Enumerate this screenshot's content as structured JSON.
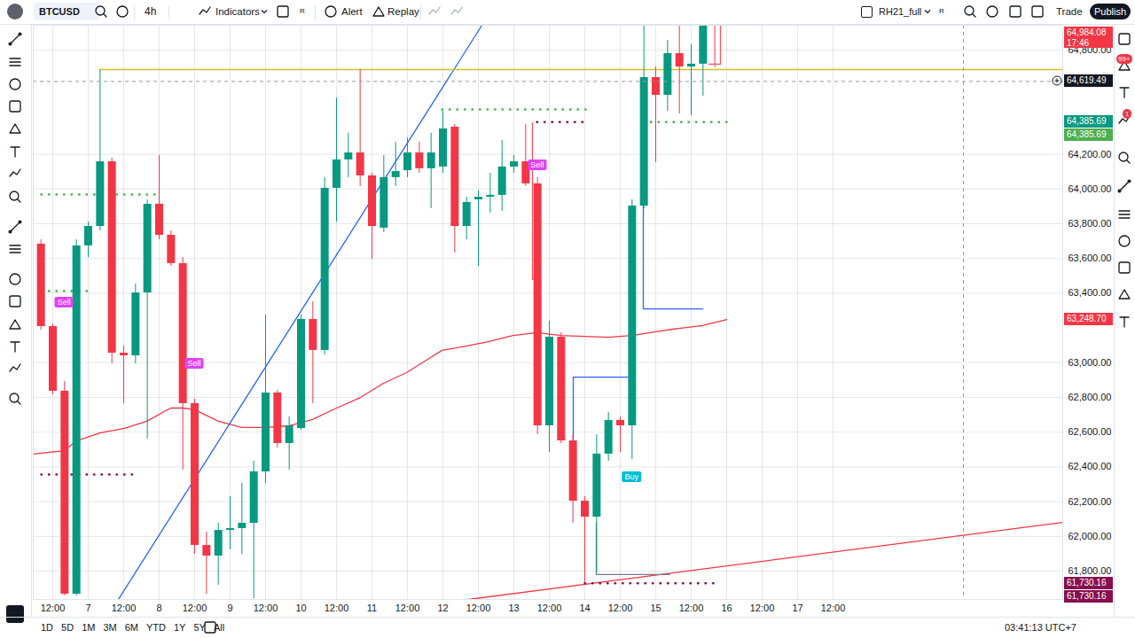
{
  "chart_data": {
    "type": "candlestick",
    "x": [
      6.3333,
      6.5,
      6.6667,
      6.8333,
      7,
      7.1667,
      7.3333,
      7.5,
      7.6667,
      7.8333,
      8,
      8.1667,
      8.3333,
      8.5,
      8.6667,
      8.8333,
      9,
      9.1667,
      9.3333,
      9.5,
      9.6667,
      9.8333,
      10,
      10.1667,
      10.3333,
      10.5,
      10.6667,
      10.8333,
      11,
      11.1667,
      11.3333,
      11.5,
      11.6667,
      11.8333,
      12,
      12.1667,
      12.3333,
      12.5,
      12.6667,
      12.8333,
      13,
      13.1667,
      13.3333,
      13.5,
      13.6667,
      13.8333,
      14,
      14.1667,
      14.3333,
      14.5,
      14.6667,
      14.8333,
      15,
      15.1667,
      15.3333,
      15.5,
      15.6667,
      15.8333
    ],
    "open": [
      63683,
      63208,
      62836,
      61668,
      63673,
      63785,
      64157,
      63055,
      63040,
      63402,
      63913,
      63734,
      63571,
      62765,
      61948,
      61887,
      62035,
      62045,
      62076,
      62372,
      62826,
      62535,
      62622,
      63249,
      63071,
      64004,
      64168,
      64208,
      64076,
      63775,
      64066,
      64106,
      64208,
      64117,
      64127,
      64356,
      63785,
      63938,
      63953,
      63964,
      64127,
      64157,
      64030,
      62637,
      63147,
      62550,
      62203,
      62111,
      62474,
      62668,
      62637,
      63902,
      64642,
      64540,
      64780,
      64703,
      64719,
      64990
    ],
    "high": [
      63708,
      63224,
      62892,
      63708,
      63810,
      64688,
      64178,
      63096,
      63453,
      63938,
      64193,
      63759,
      63606,
      62790,
      62025,
      62076,
      62229,
      62305,
      62433,
      63275,
      62841,
      62688,
      63275,
      63351,
      64066,
      64525,
      64321,
      64688,
      64091,
      64193,
      64270,
      64295,
      64270,
      64321,
      64448,
      64372,
      63953,
      63989,
      64091,
      64280,
      64193,
      64372,
      64066,
      63239,
      63173,
      62586,
      62229,
      62586,
      62714,
      62688,
      63938,
      64943,
      64703,
      64856,
      64943,
      64831,
      65000,
      65010
    ],
    "low": [
      63188,
      62816,
      61658,
      61658,
      63606,
      63759,
      62994,
      62765,
      62994,
      62561,
      63708,
      63555,
      62382,
      61897,
      61668,
      61719,
      61923,
      61897,
      61642,
      62305,
      62509,
      62382,
      62612,
      62765,
      63045,
      63810,
      64066,
      64015,
      63596,
      63749,
      64015,
      64066,
      64091,
      63887,
      64091,
      63632,
      63708,
      63555,
      63862,
      63872,
      64091,
      64015,
      62586,
      62484,
      62535,
      62076,
      61730.16,
      61795,
      62433,
      62484,
      62443,
      63887,
      64152,
      64448,
      64433,
      64423,
      64535,
      64700
    ],
    "close": [
      63208,
      62836,
      61668,
      63673,
      63785,
      64157,
      63055,
      63040,
      63402,
      63913,
      63734,
      63571,
      62765,
      61948,
      61887,
      62035,
      62045,
      62076,
      62372,
      62826,
      62535,
      62637,
      63249,
      63071,
      64004,
      64168,
      64208,
      64076,
      63785,
      64066,
      64101,
      64208,
      64117,
      64208,
      64346,
      63785,
      63923,
      63953,
      63964,
      64127,
      64157,
      64030,
      62637,
      63147,
      62550,
      62203,
      62111,
      62474,
      62668,
      62637,
      63902,
      64642,
      64540,
      64780,
      64703,
      64719,
      64990,
      64984.08
    ],
    "xlim": [
      6.225,
      20.7375
    ],
    "xticks": [
      {
        "value": 6.5,
        "label": "12:00"
      },
      7,
      {
        "value": 7.5,
        "label": "12:00"
      },
      8,
      {
        "value": 8.5,
        "label": "12:00"
      },
      9,
      {
        "value": 9.5,
        "label": "12:00"
      },
      10,
      {
        "value": 10.5,
        "label": "12:00"
      },
      11,
      {
        "value": 11.5,
        "label": "12:00"
      },
      12,
      {
        "value": 12.5,
        "label": "12:00"
      },
      13,
      {
        "value": 13.5,
        "label": "12:00"
      },
      14,
      {
        "value": 14.5,
        "label": "12:00"
      },
      15,
      {
        "value": 15.5,
        "label": "12:00"
      },
      16,
      {
        "value": 16.5,
        "label": "12:00"
      },
      17,
      {
        "value": 17.5,
        "label": "12:00"
      }
    ],
    "ylim": [
      61637,
      64943
    ],
    "yticks": [
      {
        "value": 61800,
        "label": "61,800.00"
      },
      {
        "value": 62000,
        "label": "62,000.00"
      },
      {
        "value": 62200,
        "label": "62,200.00"
      },
      {
        "value": 62400,
        "label": "62,400.00"
      },
      {
        "value": 62600,
        "label": "62,600.00"
      },
      {
        "value": 62800,
        "label": "62,800.00"
      },
      {
        "value": 63000,
        "label": "63,000.00"
      },
      {
        "value": 63400,
        "label": "63,400.00"
      },
      {
        "value": 63600,
        "label": "63,600.00"
      },
      {
        "value": 63800,
        "label": "63,800.00"
      },
      {
        "value": 64000,
        "label": "64,000.00"
      },
      {
        "value": 64200,
        "label": "64,200.00"
      },
      {
        "value": 64800,
        "label": "64,800.00"
      }
    ],
    "grid": true,
    "lines": [
      {
        "x": [
          6.225,
          6.6625,
          6.8375,
          7.1625,
          7.5125,
          7.825,
          8.1625,
          8.3375,
          8.5,
          8.8375,
          9.1625,
          9.5,
          9.8375,
          10.1625,
          10.5,
          10.8375,
          11.1625,
          11.4875,
          11.825,
          11.9875,
          12.325,
          12.65,
          12.9875,
          13.325,
          13.6625,
          14,
          14.325,
          14.6625,
          15,
          15.325,
          15.6625,
          16
        ],
        "values": [
          62474,
          62494,
          62550,
          62596,
          62622,
          62663,
          62739,
          62739,
          62729,
          62663,
          62627,
          62627,
          62637,
          62673,
          62739,
          62800,
          62882,
          62943,
          63030,
          63071,
          63096,
          63122,
          63157,
          63173,
          63157,
          63152,
          63147,
          63157,
          63178,
          63198,
          63214,
          63248.7
        ],
        "color": "#f23645",
        "line_style": "solid"
      },
      {
        "x": [
          7.425,
          12.55
        ],
        "values": [
          61637,
          64943
        ],
        "color": "#2962ff",
        "line_style": "solid"
      },
      {
        "x": [
          12.3625,
          20.7375
        ],
        "values": [
          61637,
          62081
        ],
        "color": "#f23645",
        "line_style": "solid"
      },
      {
        "x": [
          7.1625,
          20.7375
        ],
        "values": [
          64688,
          64688
        ],
        "color": "#d1c31f",
        "line_style": "solid"
      },
      {
        "x": [
          6.3375,
          8.0125
        ],
        "values": [
          63969,
          63969
        ],
        "color": "#4caf50",
        "line_style": "dotted"
      },
      {
        "x": [
          6.3375,
          7.0125
        ],
        "values": [
          63413,
          63413
        ],
        "color": "#4caf50",
        "line_style": "dotted"
      },
      {
        "x": [
          11.9875,
          14.0125
        ],
        "values": [
          64458,
          64458
        ],
        "color": "#4caf50",
        "line_style": "dotted"
      },
      {
        "x": [
          14.825,
          16
        ],
        "values": [
          64385.69,
          64385.69
        ],
        "color": "#4caf50",
        "line_style": "dotted"
      },
      {
        "x": [
          6.3375,
          7.6625
        ],
        "values": [
          62356,
          62356
        ],
        "color": "#880e4f",
        "line_style": "dotted"
      },
      {
        "x": [
          13.325,
          14.0125
        ],
        "values": [
          64385.69,
          64385.69
        ],
        "color": "#880e4f",
        "line_style": "dotted"
      },
      {
        "x": [
          14,
          15.9125
        ],
        "values": [
          61730.16,
          61730.16
        ],
        "color": "#880e4f",
        "line_style": "dotted"
      },
      {
        "x": [
          13.8375,
          13.8375,
          14.6625
        ],
        "values": [
          62249,
          62917,
          62917
        ],
        "color": "#2962ff",
        "line_style": "solid"
      },
      {
        "x": [
          14.825,
          14.825,
          15.6625
        ],
        "values": [
          64642,
          63310,
          63310
        ],
        "color": "#2962ff",
        "line_style": "solid"
      },
      {
        "x": [
          13.2625,
          13.2625,
          13.3375
        ],
        "values": [
          64382,
          63479,
          63479
        ],
        "color": "#f7525f",
        "line_style": "solid"
      },
      {
        "x": [
          14.1625,
          14.1625,
          15.2
        ],
        "values": [
          62076,
          61780,
          61780
        ],
        "color": "#787b86",
        "line_style": "solid"
      },
      {
        "x": [
          15.75,
          15.9125,
          15.9125
        ],
        "values": [
          64719,
          64719,
          64943
        ],
        "color": "#f7525f",
        "line_style": "solid"
      }
    ],
    "signals": [
      {
        "x": 6.6667,
        "y": 63346,
        "label": "Sell",
        "color": "#e040fb"
      },
      {
        "x": 8.5,
        "y": 62994,
        "label": "Sell",
        "color": "#e040fb"
      },
      {
        "x": 13.3333,
        "y": 64137,
        "label": "Sell",
        "color": "#e040fb"
      },
      {
        "x": 14.6667,
        "y": 62341,
        "label": "Buy",
        "color": "#00bcd4"
      }
    ],
    "price_labels": [
      {
        "value": 64984.08,
        "label": "64,984.08",
        "color": "#f23645",
        "countdown": "17:46"
      },
      {
        "value": 64619.49,
        "label": "64,619.49",
        "color": "#131722"
      },
      {
        "value": 64385.69,
        "label": "64,385.69",
        "color": "#089981"
      },
      {
        "value": 64385.69,
        "label": "64,385.69",
        "color": "#4caf50"
      },
      {
        "value": 63248.7,
        "label": "63,248.70",
        "color": "#f23645"
      },
      {
        "value": 61730.16,
        "label": "61,730.16",
        "color": "#880e4f"
      },
      {
        "value": 61730.16,
        "label": "61,730.16",
        "color": "#880e4f"
      }
    ],
    "crosshair": {
      "x": 19.3375,
      "y": 64619.49
    }
  },
  "ui": {
    "symbol": "BTCUSD",
    "interval": "4h",
    "indicators": "Indicators",
    "indicators_flag": "R",
    "alert": "Alert",
    "replay": "Replay",
    "layout": "RH21_full",
    "layout_flag": "R",
    "trade": "Trade",
    "publish": "Publish",
    "ranges": [
      "1D",
      "5D",
      "1M",
      "3M",
      "6M",
      "YTD",
      "1Y",
      "5Y",
      "All"
    ],
    "clock": "03:41:13 UTC+7",
    "alerts_badge": "99+",
    "chat_badge": "1"
  }
}
